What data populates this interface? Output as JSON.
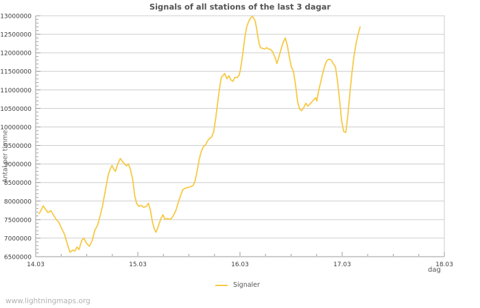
{
  "title": "Signals of all stations of the last 3 dagar",
  "watermark": "www.lightningmaps.org",
  "legend": {
    "label": "Signaler"
  },
  "axes": {
    "x_label": "dag",
    "y_label": "Antal per timme"
  },
  "colors": {
    "line": "#f6c944",
    "grid": "#cccccc",
    "axis": "#999999",
    "tick_text": "#3c3c3c",
    "title_text": "#545454",
    "muted_text": "#666666",
    "watermark": "#b2b2b2",
    "background": "#ffffff"
  },
  "chart_data": {
    "type": "line",
    "title": "Signals of all stations of the last 3 dagar",
    "xlabel": "dag",
    "ylabel": "Antal per timme",
    "xlim": [
      14,
      18
    ],
    "ylim": [
      6500000,
      13000000
    ],
    "grid": "horizontal",
    "legend_position": "bottom-center",
    "x_ticks": [
      {
        "day": 14,
        "label": "14.03"
      },
      {
        "day": 15,
        "label": "15.03"
      },
      {
        "day": 16,
        "label": "16.03"
      },
      {
        "day": 17,
        "label": "17.03"
      },
      {
        "day": 18,
        "label": "18.03"
      }
    ],
    "x_minor_tick_step": 0.25,
    "y_minor_tick_step": 100000,
    "y_ticks": [
      {
        "value": 6500000,
        "label": "6500000"
      },
      {
        "value": 7000000,
        "label": "7000000"
      },
      {
        "value": 7500000,
        "label": "7500000"
      },
      {
        "value": 8000000,
        "label": "8000000"
      },
      {
        "value": 8500000,
        "label": "8500000"
      },
      {
        "value": 9000000,
        "label": "9000000"
      },
      {
        "value": 9500000,
        "label": "9500000"
      },
      {
        "value": 10000000,
        "label": "10000000"
      },
      {
        "value": 10500000,
        "label": "10500000"
      },
      {
        "value": 11000000,
        "label": "11000000"
      },
      {
        "value": 11500000,
        "label": "11500000"
      },
      {
        "value": 12000000,
        "label": "12000000"
      },
      {
        "value": 12500000,
        "label": "12500000"
      },
      {
        "value": 13000000,
        "label": "13000000"
      }
    ],
    "series": [
      {
        "name": "Signaler",
        "color": "#f6c944",
        "points": [
          [
            14.034,
            7660000
          ],
          [
            14.054,
            7760000
          ],
          [
            14.074,
            7870000
          ],
          [
            14.094,
            7790000
          ],
          [
            14.121,
            7690000
          ],
          [
            14.148,
            7740000
          ],
          [
            14.175,
            7620000
          ],
          [
            14.202,
            7500000
          ],
          [
            14.229,
            7420000
          ],
          [
            14.256,
            7250000
          ],
          [
            14.283,
            7100000
          ],
          [
            14.31,
            6840000
          ],
          [
            14.336,
            6620000
          ],
          [
            14.363,
            6680000
          ],
          [
            14.384,
            6650000
          ],
          [
            14.404,
            6760000
          ],
          [
            14.424,
            6690000
          ],
          [
            14.451,
            6940000
          ],
          [
            14.471,
            7000000
          ],
          [
            14.498,
            6860000
          ],
          [
            14.525,
            6780000
          ],
          [
            14.552,
            6920000
          ],
          [
            14.579,
            7210000
          ],
          [
            14.606,
            7350000
          ],
          [
            14.633,
            7620000
          ],
          [
            14.653,
            7850000
          ],
          [
            14.673,
            8150000
          ],
          [
            14.693,
            8450000
          ],
          [
            14.713,
            8730000
          ],
          [
            14.733,
            8880000
          ],
          [
            14.747,
            8960000
          ],
          [
            14.767,
            8850000
          ],
          [
            14.781,
            8800000
          ],
          [
            14.801,
            8980000
          ],
          [
            14.828,
            9150000
          ],
          [
            14.848,
            9070000
          ],
          [
            14.868,
            9010000
          ],
          [
            14.888,
            8950000
          ],
          [
            14.908,
            9000000
          ],
          [
            14.929,
            8840000
          ],
          [
            14.949,
            8600000
          ],
          [
            14.969,
            8150000
          ],
          [
            14.989,
            7930000
          ],
          [
            15.009,
            7860000
          ],
          [
            15.036,
            7880000
          ],
          [
            15.057,
            7830000
          ],
          [
            15.083,
            7860000
          ],
          [
            15.104,
            7940000
          ],
          [
            15.124,
            7740000
          ],
          [
            15.144,
            7420000
          ],
          [
            15.164,
            7230000
          ],
          [
            15.178,
            7160000
          ],
          [
            15.198,
            7300000
          ],
          [
            15.225,
            7520000
          ],
          [
            15.245,
            7630000
          ],
          [
            15.265,
            7510000
          ],
          [
            15.292,
            7530000
          ],
          [
            15.319,
            7500000
          ],
          [
            15.346,
            7600000
          ],
          [
            15.373,
            7750000
          ],
          [
            15.4,
            8000000
          ],
          [
            15.42,
            8160000
          ],
          [
            15.44,
            8310000
          ],
          [
            15.467,
            8350000
          ],
          [
            15.494,
            8370000
          ],
          [
            15.521,
            8390000
          ],
          [
            15.541,
            8420000
          ],
          [
            15.561,
            8550000
          ],
          [
            15.581,
            8820000
          ],
          [
            15.602,
            9140000
          ],
          [
            15.622,
            9350000
          ],
          [
            15.642,
            9470000
          ],
          [
            15.662,
            9510000
          ],
          [
            15.682,
            9620000
          ],
          [
            15.702,
            9690000
          ],
          [
            15.723,
            9730000
          ],
          [
            15.743,
            9880000
          ],
          [
            15.763,
            10250000
          ],
          [
            15.783,
            10700000
          ],
          [
            15.803,
            11100000
          ],
          [
            15.817,
            11330000
          ],
          [
            15.837,
            11400000
          ],
          [
            15.851,
            11440000
          ],
          [
            15.871,
            11300000
          ],
          [
            15.891,
            11380000
          ],
          [
            15.911,
            11270000
          ],
          [
            15.931,
            11230000
          ],
          [
            15.951,
            11340000
          ],
          [
            15.972,
            11330000
          ],
          [
            15.992,
            11400000
          ],
          [
            16.005,
            11550000
          ],
          [
            16.026,
            11950000
          ],
          [
            16.046,
            12400000
          ],
          [
            16.066,
            12700000
          ],
          [
            16.086,
            12850000
          ],
          [
            16.106,
            12950000
          ],
          [
            16.12,
            12980000
          ],
          [
            16.133,
            12940000
          ],
          [
            16.147,
            12870000
          ],
          [
            16.16,
            12700000
          ],
          [
            16.174,
            12450000
          ],
          [
            16.187,
            12250000
          ],
          [
            16.2,
            12140000
          ],
          [
            16.221,
            12120000
          ],
          [
            16.241,
            12100000
          ],
          [
            16.261,
            12140000
          ],
          [
            16.281,
            12100000
          ],
          [
            16.301,
            12090000
          ],
          [
            16.321,
            12020000
          ],
          [
            16.342,
            11880000
          ],
          [
            16.362,
            11710000
          ],
          [
            16.382,
            11900000
          ],
          [
            16.402,
            12100000
          ],
          [
            16.422,
            12280000
          ],
          [
            16.443,
            12400000
          ],
          [
            16.463,
            12200000
          ],
          [
            16.483,
            11880000
          ],
          [
            16.503,
            11620000
          ],
          [
            16.523,
            11500000
          ],
          [
            16.543,
            11150000
          ],
          [
            16.564,
            10680000
          ],
          [
            16.584,
            10480000
          ],
          [
            16.604,
            10440000
          ],
          [
            16.624,
            10520000
          ],
          [
            16.644,
            10640000
          ],
          [
            16.664,
            10560000
          ],
          [
            16.685,
            10620000
          ],
          [
            16.705,
            10680000
          ],
          [
            16.725,
            10740000
          ],
          [
            16.739,
            10790000
          ],
          [
            16.752,
            10700000
          ],
          [
            16.772,
            11000000
          ],
          [
            16.793,
            11250000
          ],
          [
            16.813,
            11480000
          ],
          [
            16.833,
            11680000
          ],
          [
            16.853,
            11800000
          ],
          [
            16.874,
            11830000
          ],
          [
            16.894,
            11800000
          ],
          [
            16.914,
            11700000
          ],
          [
            16.934,
            11620000
          ],
          [
            16.954,
            11250000
          ],
          [
            16.974,
            10750000
          ],
          [
            16.995,
            10150000
          ],
          [
            17.015,
            9880000
          ],
          [
            17.035,
            9850000
          ],
          [
            17.055,
            10300000
          ],
          [
            17.075,
            10900000
          ],
          [
            17.095,
            11450000
          ],
          [
            17.115,
            11900000
          ],
          [
            17.136,
            12250000
          ],
          [
            17.156,
            12500000
          ],
          [
            17.176,
            12700000
          ]
        ]
      }
    ]
  }
}
